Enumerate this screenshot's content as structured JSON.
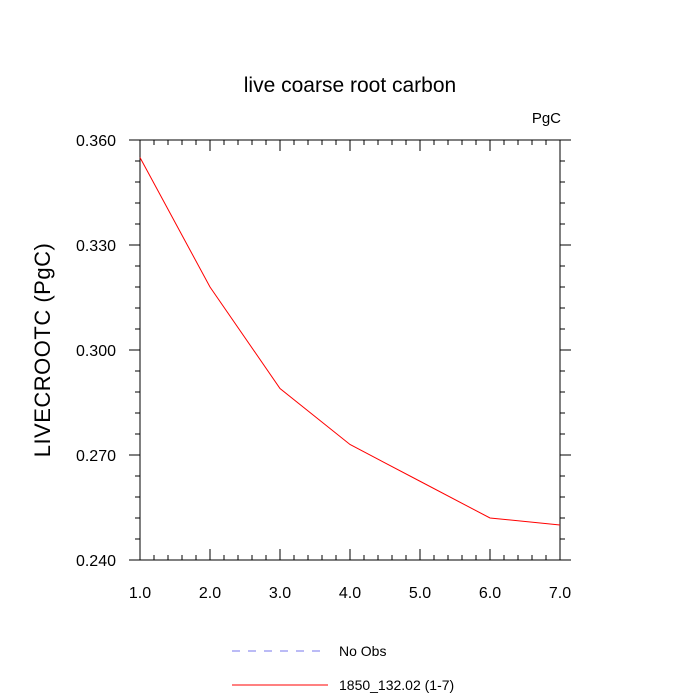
{
  "chart_data": {
    "type": "line",
    "title": "live coarse root carbon",
    "units_label": "PgC",
    "xlabel": "",
    "ylabel": "LIVECROOTC  (PgC)",
    "xlim": [
      1.0,
      7.0
    ],
    "ylim": [
      0.24,
      0.36
    ],
    "x_ticks": [
      "1.0",
      "2.0",
      "3.0",
      "4.0",
      "5.0",
      "6.0",
      "7.0"
    ],
    "y_ticks": [
      "0.240",
      "0.270",
      "0.300",
      "0.330",
      "0.360"
    ],
    "grid": false,
    "legend_position": "bottom",
    "series": [
      {
        "name": "No Obs",
        "color": "#7777ee",
        "dash": "dashed",
        "x": [],
        "y": []
      },
      {
        "name": "1850_132.02 (1-7)",
        "color": "#ff0000",
        "dash": "solid",
        "x": [
          1,
          2,
          3,
          4,
          5,
          6,
          7
        ],
        "y": [
          0.355,
          0.318,
          0.289,
          0.273,
          0.2625,
          0.252,
          0.25
        ]
      }
    ]
  }
}
